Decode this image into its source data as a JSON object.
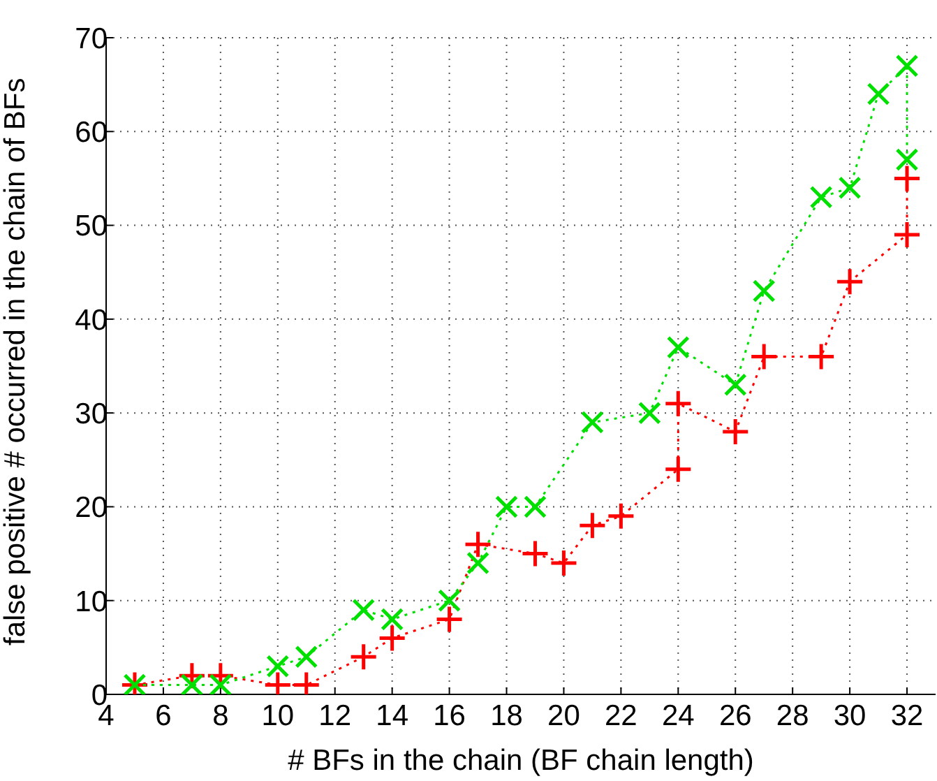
{
  "chart_data": {
    "type": "line",
    "xlabel": "# BFs in the chain (BF chain length)",
    "ylabel": "false positive # occurred in the chain of BFs",
    "xlim": [
      4,
      33
    ],
    "xticks": [
      4,
      6,
      8,
      10,
      12,
      14,
      16,
      18,
      20,
      22,
      24,
      26,
      28,
      30,
      32
    ],
    "ylim": [
      0,
      70
    ],
    "yticks": [
      0,
      10,
      20,
      30,
      40,
      50,
      60,
      70
    ],
    "grid": true,
    "line_style": "dotted",
    "legend": false,
    "series": [
      {
        "color": "#ff0000",
        "marker": "cross",
        "x": [
          5,
          7,
          8,
          10,
          11,
          13,
          14,
          16,
          17,
          19,
          20,
          21,
          22,
          24,
          24,
          26,
          27,
          29,
          30,
          32,
          32
        ],
        "values": [
          1,
          2,
          2,
          1,
          1,
          4,
          6,
          8,
          16,
          15,
          14,
          18,
          19,
          24,
          31,
          28,
          36,
          36,
          44,
          49,
          55
        ]
      },
      {
        "color": "#00e000",
        "marker": "x",
        "x": [
          5,
          7,
          8,
          10,
          11,
          13,
          14,
          16,
          17,
          18,
          19,
          21,
          23,
          24,
          26,
          27,
          29,
          30,
          31,
          32,
          32
        ],
        "values": [
          1,
          1,
          1,
          3,
          4,
          9,
          8,
          10,
          14,
          20,
          20,
          29,
          30,
          37,
          33,
          43,
          53,
          54,
          64,
          67,
          57
        ]
      }
    ]
  }
}
